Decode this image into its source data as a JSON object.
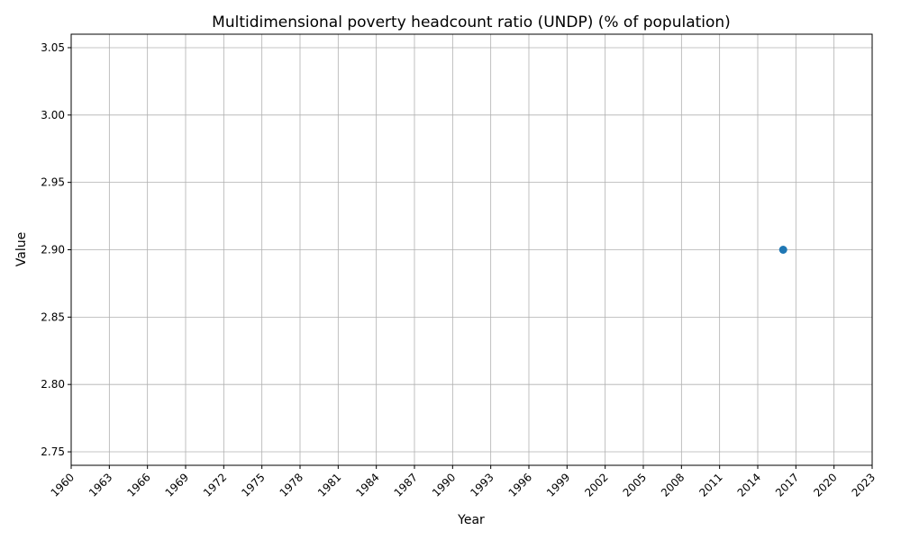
{
  "chart_data": {
    "type": "scatter",
    "title": "Multidimensional poverty headcount ratio (UNDP) (% of population)",
    "xlabel": "Year",
    "ylabel": "Value",
    "xlim": [
      1960,
      2023
    ],
    "ylim": [
      2.74,
      3.06
    ],
    "xticks": [
      1960,
      1963,
      1966,
      1969,
      1972,
      1975,
      1978,
      1981,
      1984,
      1987,
      1990,
      1993,
      1996,
      1999,
      2002,
      2005,
      2008,
      2011,
      2014,
      2017,
      2020,
      2023
    ],
    "yticks": [
      2.75,
      2.8,
      2.85,
      2.9,
      2.95,
      3.0,
      3.05
    ],
    "grid": true,
    "series": [
      {
        "color": "#1f77b4",
        "points": [
          {
            "x": 2016,
            "y": 2.9
          }
        ]
      }
    ]
  }
}
